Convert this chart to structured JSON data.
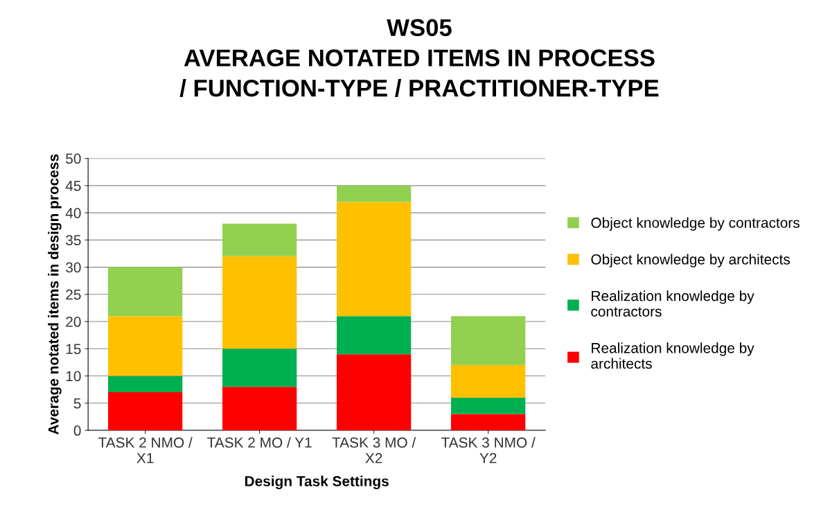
{
  "chart_data": {
    "type": "bar",
    "stacked": true,
    "title": "WS05\nAVERAGE NOTATED ITEMS IN PROCESS\n/ FUNCTION-TYPE / PRACTITIONER-TYPE",
    "xlabel": "Design Task Settings",
    "ylabel": "Average notated items in design process",
    "categories": [
      "TASK 2 NMO /\nX1",
      "TASK 2 MO / Y1",
      "TASK 3 MO /\nX2",
      "TASK 3 NMO /\nY2"
    ],
    "series": [
      {
        "name": "Realization knowledge by\narchitects",
        "color": "#ff0000",
        "values": [
          7,
          8,
          14,
          3
        ]
      },
      {
        "name": "Realization knowledge by\ncontractors",
        "color": "#00b050",
        "values": [
          3,
          7,
          7,
          3
        ]
      },
      {
        "name": "Object knowledge by architects",
        "color": "#ffc000",
        "values": [
          11,
          17,
          21,
          6
        ]
      },
      {
        "name": "Object knowledge by contractors",
        "color": "#92d050",
        "values": [
          9,
          6,
          3,
          9
        ]
      }
    ],
    "ylim": [
      0,
      50
    ],
    "yticks": [
      0,
      5,
      10,
      15,
      20,
      25,
      30,
      35,
      40,
      45,
      50
    ],
    "grid": "y",
    "legend": "right"
  }
}
